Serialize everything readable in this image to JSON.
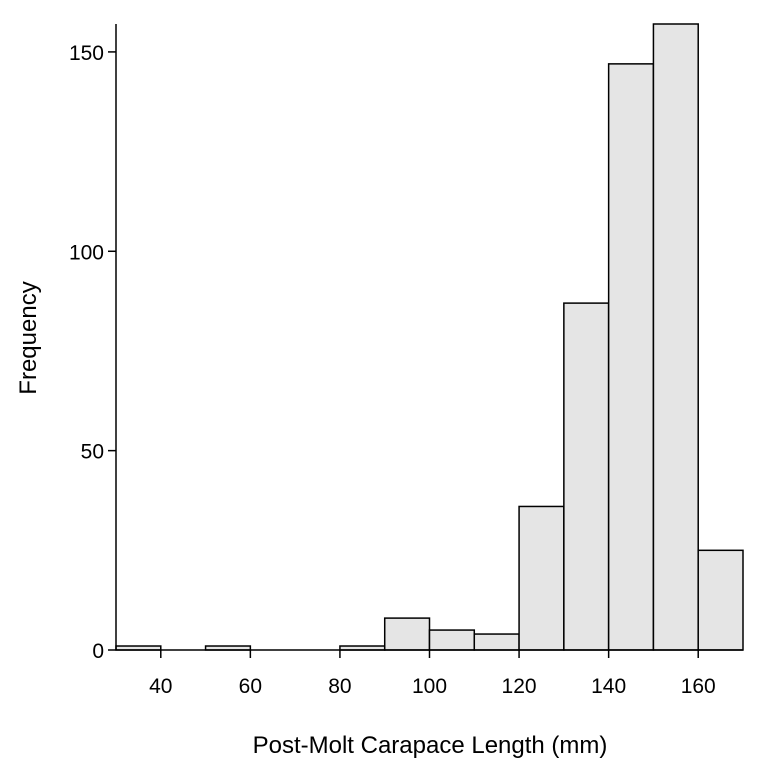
{
  "chart_data": {
    "type": "bar",
    "title": "",
    "xlabel": "Post-Molt Carapace Length (mm)",
    "ylabel": "Frequency",
    "xlim": [
      30,
      170
    ],
    "ylim": [
      0,
      157
    ],
    "xticks": [
      40,
      60,
      80,
      100,
      120,
      140,
      160
    ],
    "yticks": [
      0,
      50,
      100,
      150
    ],
    "bins": [
      {
        "start": 30,
        "end": 40,
        "count": 1
      },
      {
        "start": 40,
        "end": 50,
        "count": 0
      },
      {
        "start": 50,
        "end": 60,
        "count": 1
      },
      {
        "start": 60,
        "end": 70,
        "count": 0
      },
      {
        "start": 70,
        "end": 80,
        "count": 0
      },
      {
        "start": 80,
        "end": 90,
        "count": 1
      },
      {
        "start": 90,
        "end": 100,
        "count": 8
      },
      {
        "start": 100,
        "end": 110,
        "count": 5
      },
      {
        "start": 110,
        "end": 120,
        "count": 4
      },
      {
        "start": 120,
        "end": 130,
        "count": 36
      },
      {
        "start": 130,
        "end": 140,
        "count": 87
      },
      {
        "start": 140,
        "end": 150,
        "count": 147
      },
      {
        "start": 150,
        "end": 160,
        "count": 157
      },
      {
        "start": 160,
        "end": 170,
        "count": 25
      }
    ],
    "bar_fill": "#e5e5e5",
    "bar_stroke": "#000000",
    "grid": false
  }
}
